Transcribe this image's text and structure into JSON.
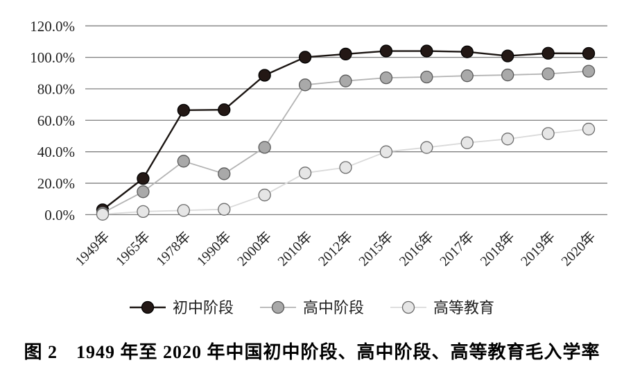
{
  "figure": {
    "caption": "图 2　1949 年至 2020 年中国初中阶段、高中阶段、高等教育毛入学率"
  },
  "colors": {
    "background": "#ffffff",
    "gridline": "#7f7f7f",
    "text": "#1f1f1f"
  },
  "chart_data": {
    "type": "line",
    "title": "",
    "xlabel": "",
    "ylabel": "",
    "grid": "horizontal",
    "legend_position": "bottom",
    "ylim": [
      0,
      120
    ],
    "y_tick_step": 20,
    "y_tick_labels": [
      "0.0%",
      "20.0%",
      "40.0%",
      "60.0%",
      "80.0%",
      "100.0%",
      "120.0%"
    ],
    "categories": [
      "1949年",
      "1965年",
      "1978年",
      "1990年",
      "2000年",
      "2010年",
      "2012年",
      "2015年",
      "2016年",
      "2017年",
      "2018年",
      "2019年",
      "2020年"
    ],
    "series": [
      {
        "id": "junior-secondary",
        "name": "初中阶段",
        "values": [
          3.1,
          23.0,
          66.4,
          66.7,
          88.6,
          100.1,
          102.1,
          104.0,
          104.0,
          103.5,
          100.9,
          102.6,
          102.5
        ],
        "line_color": "#1b1512",
        "line_width": 2.4,
        "marker_fill": "#231815",
        "marker_stroke": "#000000"
      },
      {
        "id": "senior-secondary",
        "name": "高中阶段",
        "values": [
          1.1,
          14.6,
          34.0,
          26.0,
          42.8,
          82.5,
          85.0,
          87.0,
          87.5,
          88.3,
          88.8,
          89.5,
          91.2
        ],
        "line_color": "#b3b3b3",
        "line_width": 1.8,
        "marker_fill": "#a9a9a9",
        "marker_stroke": "#595959"
      },
      {
        "id": "higher-education",
        "name": "高等教育",
        "values": [
          0.26,
          2.0,
          2.7,
          3.4,
          12.5,
          26.5,
          30.0,
          40.0,
          42.7,
          45.7,
          48.1,
          51.6,
          54.4
        ],
        "line_color": "#d9d9d9",
        "line_width": 1.8,
        "marker_fill": "#e6e6e6",
        "marker_stroke": "#6b6b6b"
      }
    ]
  }
}
